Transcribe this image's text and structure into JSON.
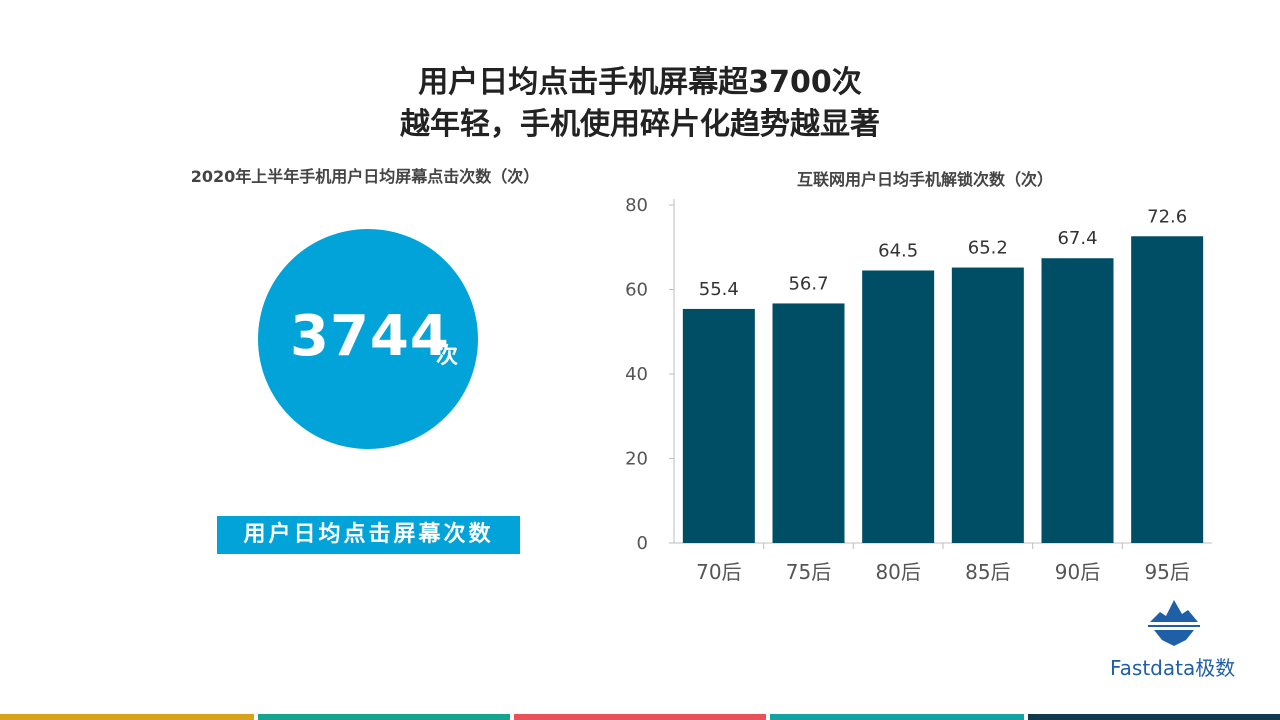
{
  "header": {
    "title_line1": "用户日均点击手机屏幕超3700次",
    "title_line2": "越年轻，手机使用碎片化趋势越显著"
  },
  "left_panel": {
    "subtitle": "2020年上半年手机用户日均屏幕点击次数（次）",
    "big_number": "3744",
    "unit": "次",
    "label": "用户日均点击屏幕次数"
  },
  "chart_data": {
    "type": "bar",
    "title": "互联网用户日均手机解锁次数（次）",
    "categories": [
      "70后",
      "75后",
      "80后",
      "85后",
      "90后",
      "95后"
    ],
    "values": [
      55.4,
      56.7,
      64.5,
      65.2,
      67.4,
      72.6
    ],
    "ylim": [
      0,
      80
    ],
    "yticks": [
      0,
      20,
      40,
      60,
      80
    ],
    "bar_color": "#004d66",
    "grid": false
  },
  "logo": {
    "text": "Fastdata极数"
  },
  "colors": {
    "accent_blue": "#02a3d9",
    "bar": "#004d66",
    "stripes": [
      "#d9a21b",
      "#16a38f",
      "#e8505b",
      "#14a3a0",
      "#13394d"
    ]
  }
}
